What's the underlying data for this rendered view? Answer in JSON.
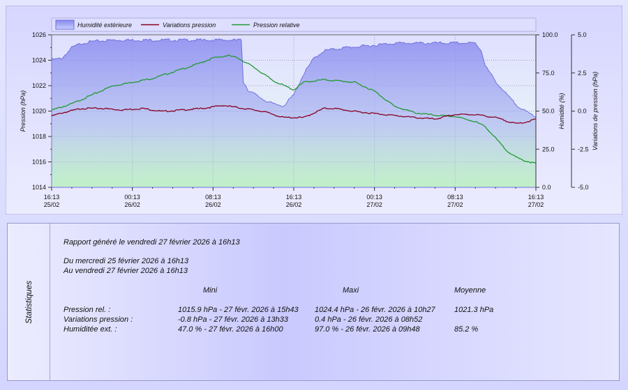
{
  "chart_data": {
    "type": "line",
    "legend": {
      "placement": "top-left",
      "entries": [
        {
          "label": "Humidité extérieure",
          "color": "#8888ee",
          "kind": "area"
        },
        {
          "label": "Variations pression",
          "color": "#880022",
          "kind": "line"
        },
        {
          "label": "Pression relative",
          "color": "#229933",
          "kind": "line"
        }
      ]
    },
    "x_tick_labels": [
      {
        "time": "16:13",
        "date": "25/02"
      },
      {
        "time": "00:13",
        "date": "26/02"
      },
      {
        "time": "08:13",
        "date": "26/02"
      },
      {
        "time": "16:13",
        "date": "26/02"
      },
      {
        "time": "00:13",
        "date": "27/02"
      },
      {
        "time": "08:13",
        "date": "27/02"
      },
      {
        "time": "16:13",
        "date": "27/02"
      }
    ],
    "x_range_hours": [
      0,
      48
    ],
    "y_left": {
      "label": "Pression (hPa)",
      "range": [
        1014,
        1026
      ],
      "ticks": [
        "1014",
        "1016",
        "1018",
        "1020",
        "1022",
        "1024",
        "1026"
      ]
    },
    "y_right1": {
      "label": "Humidité (%)",
      "range": [
        0,
        100
      ],
      "ticks": [
        "0.0",
        "25.0",
        "50.0",
        "75.0",
        "100.0"
      ]
    },
    "y_right2": {
      "label": "Variations de pression (hPa)",
      "range": [
        -5,
        5
      ],
      "ticks": [
        "-5.0",
        "-2.5",
        "0.0",
        "2.5",
        "5.0"
      ]
    },
    "grid": true,
    "series": [
      {
        "name": "Humidité extérieure",
        "axis": "y_right1",
        "color": "#8888ee",
        "points": [
          [
            0,
            84
          ],
          [
            1,
            85
          ],
          [
            2,
            92
          ],
          [
            3,
            95
          ],
          [
            4,
            96
          ],
          [
            6,
            97
          ],
          [
            12,
            97
          ],
          [
            18,
            97
          ],
          [
            18.8,
            97
          ],
          [
            19,
            70
          ],
          [
            19.5,
            64
          ],
          [
            20,
            62
          ],
          [
            21,
            58
          ],
          [
            22,
            55
          ],
          [
            23,
            54
          ],
          [
            24,
            61
          ],
          [
            24.5,
            68
          ],
          [
            25,
            75
          ],
          [
            26,
            85
          ],
          [
            27,
            90
          ],
          [
            29,
            92
          ],
          [
            31,
            93
          ],
          [
            34,
            95
          ],
          [
            40,
            95
          ],
          [
            42,
            95
          ],
          [
            42.6,
            90
          ],
          [
            43,
            80
          ],
          [
            44,
            70
          ],
          [
            45,
            62
          ],
          [
            46,
            55
          ],
          [
            47,
            50
          ],
          [
            48,
            47
          ]
        ]
      },
      {
        "name": "Pression relative",
        "axis": "y_left",
        "color": "#229933",
        "points": [
          [
            0,
            1020.1
          ],
          [
            2,
            1020.6
          ],
          [
            4,
            1021.3
          ],
          [
            6,
            1022.0
          ],
          [
            8,
            1022.3
          ],
          [
            10,
            1022.6
          ],
          [
            12,
            1023.1
          ],
          [
            14,
            1023.6
          ],
          [
            16,
            1024.2
          ],
          [
            17.5,
            1024.4
          ],
          [
            18.5,
            1024.2
          ],
          [
            20,
            1023.5
          ],
          [
            22,
            1022.4
          ],
          [
            24,
            1021.7
          ],
          [
            25,
            1022.3
          ],
          [
            27,
            1022.5
          ],
          [
            30,
            1022.3
          ],
          [
            32,
            1021.6
          ],
          [
            34,
            1020.4
          ],
          [
            36,
            1019.9
          ],
          [
            38,
            1019.7
          ],
          [
            40,
            1019.6
          ],
          [
            42,
            1019.2
          ],
          [
            43,
            1018.8
          ],
          [
            44,
            1017.9
          ],
          [
            45,
            1017.0
          ],
          [
            46,
            1016.4
          ],
          [
            47,
            1016.1
          ],
          [
            48,
            1015.9
          ]
        ]
      },
      {
        "name": "Variations pression",
        "axis": "y_right2",
        "color": "#880022",
        "points": [
          [
            0,
            -0.3
          ],
          [
            1,
            -0.1
          ],
          [
            3,
            0.2
          ],
          [
            5,
            0.2
          ],
          [
            7,
            0.1
          ],
          [
            9,
            0.2
          ],
          [
            11,
            0.0
          ],
          [
            13,
            0.1
          ],
          [
            15,
            0.2
          ],
          [
            17,
            0.4
          ],
          [
            19,
            0.2
          ],
          [
            21,
            0.0
          ],
          [
            23,
            -0.4
          ],
          [
            25,
            -0.4
          ],
          [
            27,
            0.2
          ],
          [
            28,
            0.2
          ],
          [
            30,
            0.0
          ],
          [
            33,
            -0.2
          ],
          [
            36,
            -0.4
          ],
          [
            38,
            -0.5
          ],
          [
            40,
            -0.2
          ],
          [
            42,
            -0.2
          ],
          [
            44,
            -0.4
          ],
          [
            46,
            -0.8
          ],
          [
            47,
            -0.7
          ],
          [
            48,
            -0.5
          ]
        ]
      }
    ]
  },
  "stats": {
    "side_label": "Statistiques",
    "report_line": "Rapport généré le vendredi 27 février 2026 à 16h13",
    "from_line": "Du mercredi 25 février 2026 à 16h13",
    "to_line": "Au vendredi 27 février 2026 à 16h13",
    "columns": {
      "min": "Mini",
      "max": "Maxi",
      "avg": "Moyenne"
    },
    "rows": [
      {
        "label": "Pression rel. :",
        "min": "1015.9 hPa - 27 févr. 2026 à 15h43",
        "max": "1024.4 hPa - 26 févr. 2026 à 10h27",
        "avg": "1021.3 hPa"
      },
      {
        "label": "Variations pression :",
        "min": "-0.8 hPa - 27 févr. 2026 à 13h33",
        "max": "0.4 hPa - 26 févr. 2026 à 08h52",
        "avg": ""
      },
      {
        "label": "Humiditée ext. :",
        "min": "47.0 % - 27 févr. 2026 à 16h00",
        "max": "97.0 % - 26 févr. 2026 à 09h48",
        "avg": "85.2 %"
      }
    ]
  }
}
